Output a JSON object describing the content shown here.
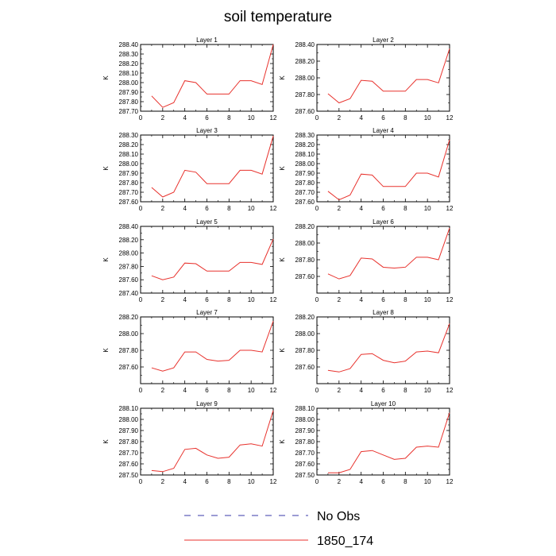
{
  "title": "soil temperature",
  "legend": [
    {
      "label": "No Obs",
      "color": "#3a3aa8",
      "dash": "dashed"
    },
    {
      "label": "1850_174",
      "color": "#e8322d",
      "dash": "solid"
    }
  ],
  "chart_data": [
    {
      "type": "line",
      "title": "Layer 1",
      "ylabel": "K",
      "xlim": [
        0,
        12
      ],
      "ylim": [
        287.7,
        288.4
      ],
      "xticks": [
        0,
        2,
        4,
        6,
        8,
        10,
        12
      ],
      "ytick_labels": [
        "287.70",
        "287.80",
        "287.90",
        "288.00",
        "288.10",
        "288.20",
        "288.30",
        "288.40"
      ],
      "series": [
        {
          "name": "1850_174",
          "x": [
            1,
            2,
            3,
            4,
            5,
            6,
            7,
            8,
            9,
            10,
            11,
            12
          ],
          "y": [
            287.86,
            287.74,
            287.79,
            288.02,
            288.0,
            287.88,
            287.88,
            287.88,
            288.02,
            288.02,
            287.98,
            288.4
          ]
        }
      ]
    },
    {
      "type": "line",
      "title": "Layer 2",
      "ylabel": "K",
      "xlim": [
        0,
        12
      ],
      "ylim": [
        287.6,
        288.4
      ],
      "xticks": [
        0,
        2,
        4,
        6,
        8,
        10,
        12
      ],
      "ytick_labels": [
        "287.60",
        "287.80",
        "288.00",
        "288.20",
        "288.40"
      ],
      "series": [
        {
          "name": "1850_174",
          "x": [
            1,
            2,
            3,
            4,
            5,
            6,
            7,
            8,
            9,
            10,
            11,
            12
          ],
          "y": [
            287.81,
            287.7,
            287.75,
            287.97,
            287.96,
            287.84,
            287.84,
            287.84,
            287.98,
            287.98,
            287.94,
            288.35
          ]
        }
      ]
    },
    {
      "type": "line",
      "title": "Layer 3",
      "ylabel": "K",
      "xlim": [
        0,
        12
      ],
      "ylim": [
        287.6,
        288.3
      ],
      "xticks": [
        0,
        2,
        4,
        6,
        8,
        10,
        12
      ],
      "ytick_labels": [
        "287.60",
        "287.70",
        "287.80",
        "287.90",
        "288.00",
        "288.10",
        "288.20",
        "288.30"
      ],
      "series": [
        {
          "name": "1850_174",
          "x": [
            1,
            2,
            3,
            4,
            5,
            6,
            7,
            8,
            9,
            10,
            11,
            12
          ],
          "y": [
            287.75,
            287.65,
            287.7,
            287.93,
            287.91,
            287.79,
            287.79,
            287.79,
            287.93,
            287.93,
            287.89,
            288.29
          ]
        }
      ]
    },
    {
      "type": "line",
      "title": "Layer 4",
      "ylabel": "K",
      "xlim": [
        0,
        12
      ],
      "ylim": [
        287.6,
        288.3
      ],
      "xticks": [
        0,
        2,
        4,
        6,
        8,
        10,
        12
      ],
      "ytick_labels": [
        "287.60",
        "287.70",
        "287.80",
        "287.90",
        "288.00",
        "288.10",
        "288.20",
        "288.30"
      ],
      "series": [
        {
          "name": "1850_174",
          "x": [
            1,
            2,
            3,
            4,
            5,
            6,
            7,
            8,
            9,
            10,
            11,
            12
          ],
          "y": [
            287.71,
            287.62,
            287.67,
            287.89,
            287.88,
            287.76,
            287.76,
            287.76,
            287.9,
            287.9,
            287.86,
            288.25
          ]
        }
      ]
    },
    {
      "type": "line",
      "title": "Layer 5",
      "ylabel": "K",
      "xlim": [
        0,
        12
      ],
      "ylim": [
        287.4,
        288.4
      ],
      "xticks": [
        0,
        2,
        4,
        6,
        8,
        10,
        12
      ],
      "ytick_labels": [
        "287.40",
        "287.60",
        "287.80",
        "288.00",
        "288.20",
        "288.40"
      ],
      "series": [
        {
          "name": "1850_174",
          "x": [
            1,
            2,
            3,
            4,
            5,
            6,
            7,
            8,
            9,
            10,
            11,
            12
          ],
          "y": [
            287.66,
            287.6,
            287.64,
            287.85,
            287.84,
            287.73,
            287.73,
            287.73,
            287.86,
            287.86,
            287.83,
            288.21
          ]
        }
      ]
    },
    {
      "type": "line",
      "title": "Layer 6",
      "ylabel": "K",
      "xlim": [
        0,
        12
      ],
      "ylim": [
        287.4,
        288.2
      ],
      "xticks": [
        0,
        2,
        4,
        6,
        8,
        10,
        12
      ],
      "ytick_labels": [
        "287.60",
        "287.80",
        "288.00",
        "288.20"
      ],
      "series": [
        {
          "name": "1850_174",
          "x": [
            1,
            2,
            3,
            4,
            5,
            6,
            7,
            8,
            9,
            10,
            11,
            12
          ],
          "y": [
            287.63,
            287.57,
            287.61,
            287.82,
            287.81,
            287.71,
            287.7,
            287.71,
            287.83,
            287.83,
            287.8,
            288.18
          ]
        }
      ]
    },
    {
      "type": "line",
      "title": "Layer 7",
      "ylabel": "K",
      "xlim": [
        0,
        12
      ],
      "ylim": [
        287.4,
        288.2
      ],
      "xticks": [
        0,
        2,
        4,
        6,
        8,
        10,
        12
      ],
      "ytick_labels": [
        "287.60",
        "287.80",
        "288.00",
        "288.20"
      ],
      "series": [
        {
          "name": "1850_174",
          "x": [
            1,
            2,
            3,
            4,
            5,
            6,
            7,
            8,
            9,
            10,
            11,
            12
          ],
          "y": [
            287.59,
            287.55,
            287.59,
            287.78,
            287.78,
            287.69,
            287.67,
            287.68,
            287.8,
            287.8,
            287.78,
            288.15
          ]
        }
      ]
    },
    {
      "type": "line",
      "title": "Layer 8",
      "ylabel": "K",
      "xlim": [
        0,
        12
      ],
      "ylim": [
        287.4,
        288.2
      ],
      "xticks": [
        0,
        2,
        4,
        6,
        8,
        10,
        12
      ],
      "ytick_labels": [
        "287.60",
        "287.80",
        "288.00",
        "288.20"
      ],
      "series": [
        {
          "name": "1850_174",
          "x": [
            1,
            2,
            3,
            4,
            5,
            6,
            7,
            8,
            9,
            10,
            11,
            12
          ],
          "y": [
            287.56,
            287.54,
            287.58,
            287.75,
            287.76,
            287.68,
            287.65,
            287.67,
            287.78,
            287.79,
            287.77,
            288.12
          ]
        }
      ]
    },
    {
      "type": "line",
      "title": "Layer 9",
      "ylabel": "K",
      "xlim": [
        0,
        12
      ],
      "ylim": [
        287.5,
        288.1
      ],
      "xticks": [
        0,
        2,
        4,
        6,
        8,
        10,
        12
      ],
      "ytick_labels": [
        "287.50",
        "287.60",
        "287.70",
        "287.80",
        "287.90",
        "288.00",
        "288.10"
      ],
      "series": [
        {
          "name": "1850_174",
          "x": [
            1,
            2,
            3,
            4,
            5,
            6,
            7,
            8,
            9,
            10,
            11,
            12
          ],
          "y": [
            287.54,
            287.53,
            287.56,
            287.73,
            287.74,
            287.68,
            287.65,
            287.66,
            287.77,
            287.78,
            287.76,
            288.08
          ]
        }
      ]
    },
    {
      "type": "line",
      "title": "Layer 10",
      "ylabel": "K",
      "xlim": [
        0,
        12
      ],
      "ylim": [
        287.5,
        288.1
      ],
      "xticks": [
        0,
        2,
        4,
        6,
        8,
        10,
        12
      ],
      "ytick_labels": [
        "287.50",
        "287.60",
        "287.70",
        "287.80",
        "287.90",
        "288.00",
        "288.10"
      ],
      "series": [
        {
          "name": "1850_174",
          "x": [
            1,
            2,
            3,
            4,
            5,
            6,
            7,
            8,
            9,
            10,
            11,
            12
          ],
          "y": [
            287.52,
            287.52,
            287.55,
            287.71,
            287.72,
            287.68,
            287.64,
            287.65,
            287.75,
            287.76,
            287.75,
            288.06
          ]
        }
      ]
    }
  ]
}
